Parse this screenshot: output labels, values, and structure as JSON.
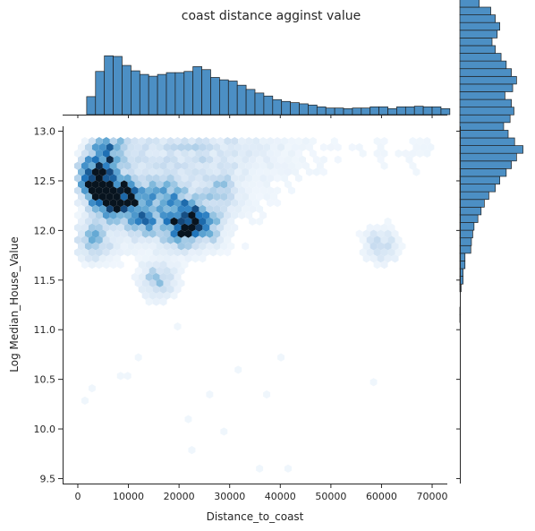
{
  "chart_data": {
    "type": "hexbin-joint",
    "title": "coast distance agginst value",
    "xlabel": "Distance_to_coast",
    "ylabel": "Log Median_House_Value",
    "xlim": [
      -3000,
      73000
    ],
    "ylim": [
      9.45,
      13.05
    ],
    "xticks": [
      0,
      10000,
      20000,
      30000,
      40000,
      50000,
      60000,
      70000
    ],
    "yticks": [
      9.5,
      10.0,
      10.5,
      11.0,
      11.5,
      12.0,
      12.5,
      13.0
    ],
    "grid": false,
    "colors": {
      "hex": "#1f77b4",
      "hex_max": "#08141f",
      "hist": "#4c8fc4",
      "hist_edge": "#1f1f1f"
    },
    "marginal_x": {
      "bin_start": 1750,
      "bin_width": 1750,
      "counts": [
        0.3,
        0.72,
        0.98,
        0.97,
        0.82,
        0.73,
        0.67,
        0.64,
        0.67,
        0.7,
        0.7,
        0.72,
        0.8,
        0.75,
        0.62,
        0.58,
        0.56,
        0.49,
        0.42,
        0.36,
        0.31,
        0.25,
        0.22,
        0.2,
        0.18,
        0.16,
        0.13,
        0.11,
        0.11,
        0.1,
        0.11,
        0.11,
        0.13,
        0.13,
        0.1,
        0.13,
        0.13,
        0.14,
        0.13,
        0.13,
        0.1
      ]
    },
    "marginal_y": {
      "bin_start": 9.6,
      "bin_width": 0.0775,
      "counts": [
        0,
        0,
        0,
        0,
        0,
        0,
        0,
        0,
        0,
        0,
        0,
        0,
        0,
        0,
        0,
        0,
        0,
        0,
        0,
        0.01,
        0.01,
        0,
        0,
        0.02,
        0.05,
        0.05,
        0.08,
        0.08,
        0.17,
        0.18,
        0.2,
        0.22,
        0.28,
        0.33,
        0.38,
        0.45,
        0.55,
        0.62,
        0.72,
        0.8,
        0.88,
        0.98,
        0.85,
        0.75,
        0.68,
        0.78,
        0.84,
        0.8,
        0.7,
        0.82,
        0.88,
        0.8,
        0.72,
        0.64,
        0.55,
        0.5,
        0.58,
        0.62,
        0.55,
        0.48,
        0.3
      ]
    },
    "density_hotspots": [
      {
        "x": 3000,
        "y": 12.52,
        "w": 1.0
      },
      {
        "x": 5000,
        "y": 12.4,
        "w": 0.8
      },
      {
        "x": 7000,
        "y": 12.3,
        "w": 0.7
      },
      {
        "x": 10000,
        "y": 12.33,
        "w": 0.65
      },
      {
        "x": 13000,
        "y": 12.1,
        "w": 0.55
      },
      {
        "x": 21000,
        "y": 12.15,
        "w": 0.75
      },
      {
        "x": 20000,
        "y": 12.0,
        "w": 0.65
      },
      {
        "x": 17000,
        "y": 12.35,
        "w": 0.5
      },
      {
        "x": 25000,
        "y": 12.05,
        "w": 0.55
      },
      {
        "x": 16000,
        "y": 11.5,
        "w": 0.4
      },
      {
        "x": 3000,
        "y": 11.9,
        "w": 0.45
      },
      {
        "x": 5000,
        "y": 12.78,
        "w": 0.5
      },
      {
        "x": 28000,
        "y": 12.4,
        "w": 0.3
      },
      {
        "x": 60000,
        "y": 11.85,
        "w": 0.25
      }
    ]
  }
}
